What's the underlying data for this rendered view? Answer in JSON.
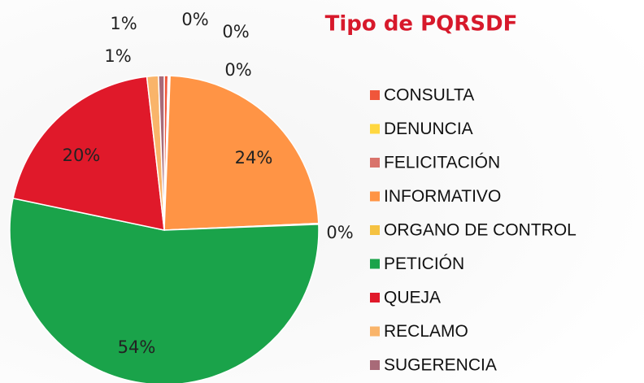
{
  "chart_data": {
    "type": "pie",
    "title": "Tipo de PQRSDF",
    "categories": [
      "CONSULTA",
      "DENUNCIA",
      "FELICITACIÓN",
      "INFORMATIVO",
      "ORGANO DE CONTROL",
      "PETICIÓN",
      "QUEJA",
      "RECLAMO",
      "SUGERENCIA"
    ],
    "values": [
      0.4,
      0.1,
      0.1,
      23.7,
      0.1,
      53.9,
      19.9,
      1.2,
      0.6
    ],
    "value_labels": [
      "0%",
      "0%",
      "0%",
      "24%",
      "0%",
      "54%",
      "20%",
      "1%",
      "1%"
    ],
    "colors": [
      "#f0563a",
      "#ffd740",
      "#d9736b",
      "#ff9445",
      "#f5c242",
      "#1aa34a",
      "#e0192a",
      "#f9b46a",
      "#a86a78"
    ],
    "legend": "right"
  }
}
